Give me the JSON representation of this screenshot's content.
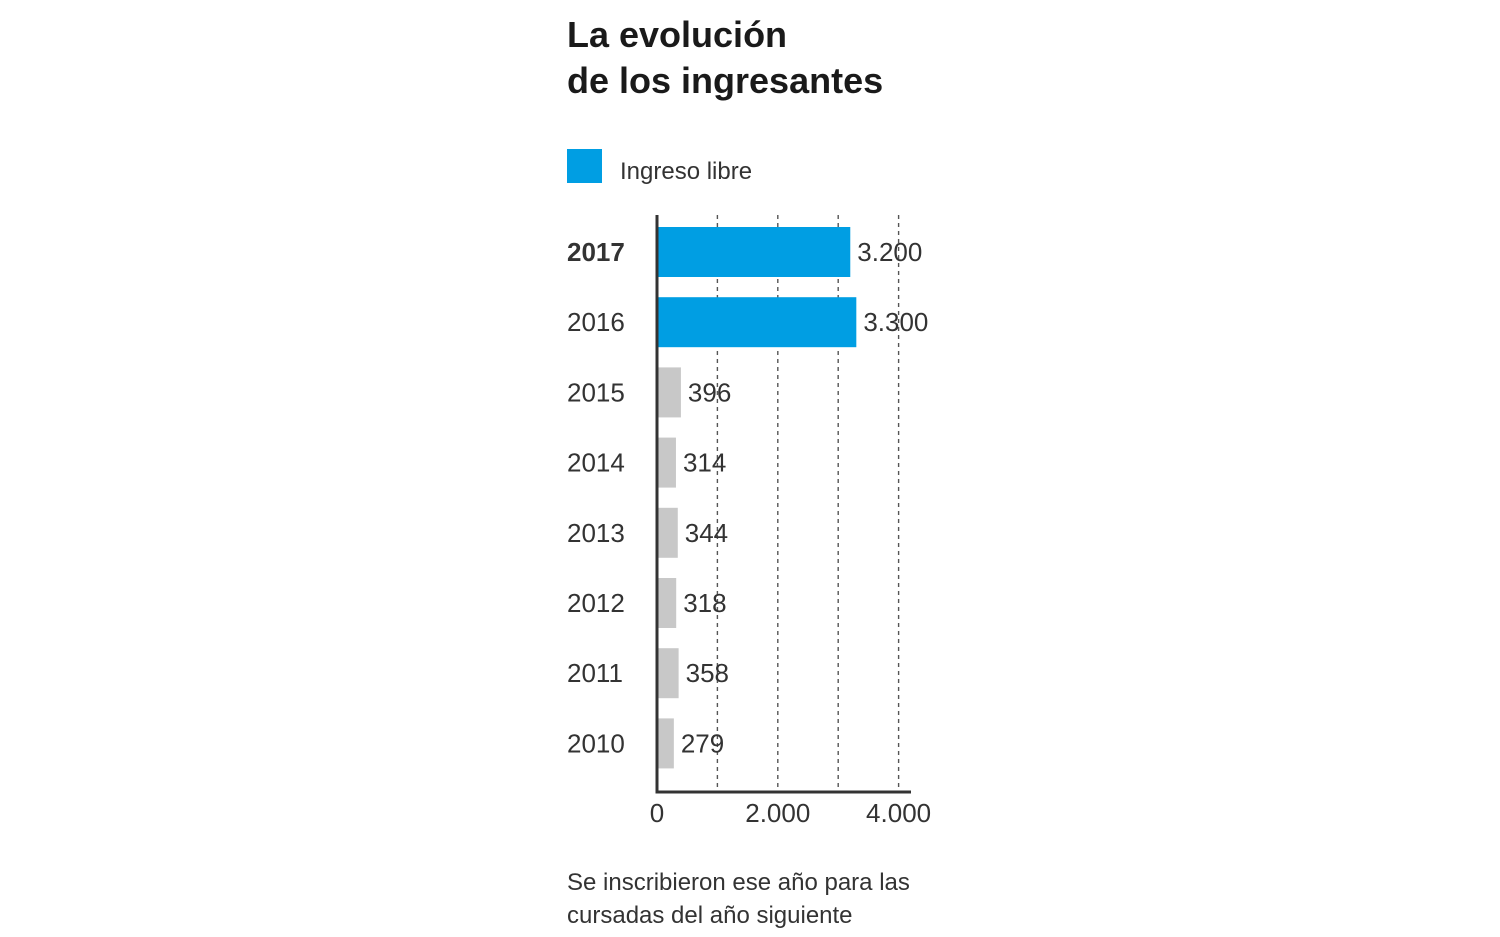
{
  "title_lines": [
    "La evolución",
    "de los ingresantes"
  ],
  "legend": {
    "label": "Ingreso libre",
    "color": "#009ee3"
  },
  "note_lines": [
    "Se inscribieron ese año para las",
    "cursadas del año siguiente"
  ],
  "colors": {
    "highlight": "#009ee3",
    "other": "#c8c8c8",
    "axis": "#333333",
    "grid": "#555555"
  },
  "chart_data": {
    "type": "bar",
    "orientation": "horizontal",
    "categories": [
      "2017",
      "2016",
      "2015",
      "2014",
      "2013",
      "2012",
      "2011",
      "2010"
    ],
    "values": [
      3200,
      3300,
      396,
      314,
      344,
      318,
      358,
      279
    ],
    "value_labels": [
      "3.200",
      "3.300",
      "396",
      "314",
      "344",
      "318",
      "358",
      "279"
    ],
    "highlighted_categories": [
      "2017",
      "2016"
    ],
    "bold_categories": [
      "2017"
    ],
    "xlim": [
      0,
      4200
    ],
    "xticks": [
      {
        "value": 0,
        "label": "0"
      },
      {
        "value": 2000,
        "label": "2.000"
      },
      {
        "value": 4000,
        "label": "4.000"
      }
    ],
    "gridlines": [
      1000,
      2000,
      3000,
      4000
    ],
    "gridline_style": "dashed",
    "legend_position": "top-left",
    "title": "La evolución de los ingresantes",
    "xlabel": "",
    "ylabel": ""
  }
}
